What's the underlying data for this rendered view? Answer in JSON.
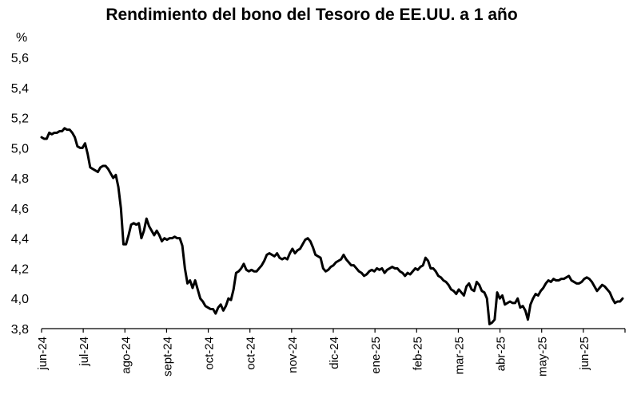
{
  "chart_data": {
    "type": "line",
    "title": "Rendimiento del bono del Tesoro de EE.UU. a 1 año",
    "xlabel": "",
    "ylabel": "%",
    "ylim": [
      3.8,
      5.6
    ],
    "yticks": [
      "3,8",
      "4,0",
      "4,2",
      "4,4",
      "4,6",
      "4,8",
      "5,0",
      "5,2",
      "5,4",
      "5,6"
    ],
    "ytick_values": [
      3.8,
      4.0,
      4.2,
      4.4,
      4.6,
      4.8,
      5.0,
      5.2,
      5.4,
      5.6
    ],
    "x_tick_labels": [
      "jun-24",
      "jul-24",
      "ago-24",
      "sept-24",
      "oct-24",
      "oct-24",
      "nov-24",
      "dic-24",
      "ene-25",
      "feb-25",
      "mar-25",
      "abr-25",
      "may-25",
      "jun-25"
    ],
    "grid": false,
    "legend": "none",
    "line_color": "#000000",
    "series": [
      {
        "values": [
          5.07,
          5.06,
          5.06,
          5.1,
          5.09,
          5.1,
          5.1,
          5.11,
          5.11,
          5.13,
          5.12,
          5.12,
          5.1,
          5.07,
          5.01,
          5.0,
          5.0,
          5.03,
          4.96,
          4.87,
          4.86,
          4.85,
          4.84,
          4.87,
          4.88,
          4.88,
          4.86,
          4.83,
          4.8,
          4.82,
          4.74,
          4.6,
          4.36,
          4.36,
          4.42,
          4.49,
          4.5,
          4.49,
          4.5,
          4.4,
          4.45,
          4.53,
          4.48,
          4.45,
          4.42,
          4.45,
          4.42,
          4.38,
          4.4,
          4.39,
          4.4,
          4.4,
          4.41,
          4.4,
          4.4,
          4.35,
          4.2,
          4.1,
          4.12,
          4.07,
          4.12,
          4.06,
          4.0,
          3.98,
          3.95,
          3.94,
          3.93,
          3.93,
          3.9,
          3.94,
          3.96,
          3.92,
          3.95,
          4.0,
          3.99,
          4.06,
          4.17,
          4.18,
          4.2,
          4.23,
          4.19,
          4.18,
          4.19,
          4.18,
          4.18,
          4.2,
          4.22,
          4.25,
          4.29,
          4.3,
          4.29,
          4.28,
          4.3,
          4.27,
          4.26,
          4.27,
          4.26,
          4.3,
          4.33,
          4.3,
          4.32,
          4.33,
          4.36,
          4.39,
          4.4,
          4.38,
          4.34,
          4.29,
          4.28,
          4.27,
          4.2,
          4.18,
          4.19,
          4.21,
          4.22,
          4.24,
          4.25,
          4.26,
          4.29,
          4.26,
          4.24,
          4.22,
          4.22,
          4.2,
          4.18,
          4.17,
          4.15,
          4.16,
          4.18,
          4.19,
          4.18,
          4.2,
          4.19,
          4.2,
          4.17,
          4.19,
          4.2,
          4.21,
          4.2,
          4.2,
          4.18,
          4.17,
          4.15,
          4.17,
          4.16,
          4.18,
          4.2,
          4.19,
          4.21,
          4.22,
          4.27,
          4.25,
          4.2,
          4.2,
          4.18,
          4.15,
          4.14,
          4.12,
          4.11,
          4.09,
          4.06,
          4.05,
          4.03,
          4.06,
          4.04,
          4.02,
          4.08,
          4.1,
          4.06,
          4.05,
          4.11,
          4.09,
          4.05,
          4.04,
          4.0,
          3.83,
          3.84,
          3.86,
          4.04,
          4.0,
          4.02,
          3.96,
          3.97,
          3.98,
          3.97,
          3.97,
          4.0,
          3.94,
          3.95,
          3.92,
          3.86,
          3.96,
          4.0,
          4.03,
          4.02,
          4.05,
          4.07,
          4.1,
          4.12,
          4.11,
          4.13,
          4.12,
          4.12,
          4.13,
          4.13,
          4.14,
          4.15,
          4.12,
          4.11,
          4.1,
          4.1,
          4.11,
          4.13,
          4.14,
          4.13,
          4.11,
          4.08,
          4.05,
          4.07,
          4.09,
          4.08,
          4.06,
          4.04,
          4.0,
          3.97,
          3.98,
          3.98,
          4.0
        ]
      }
    ]
  }
}
